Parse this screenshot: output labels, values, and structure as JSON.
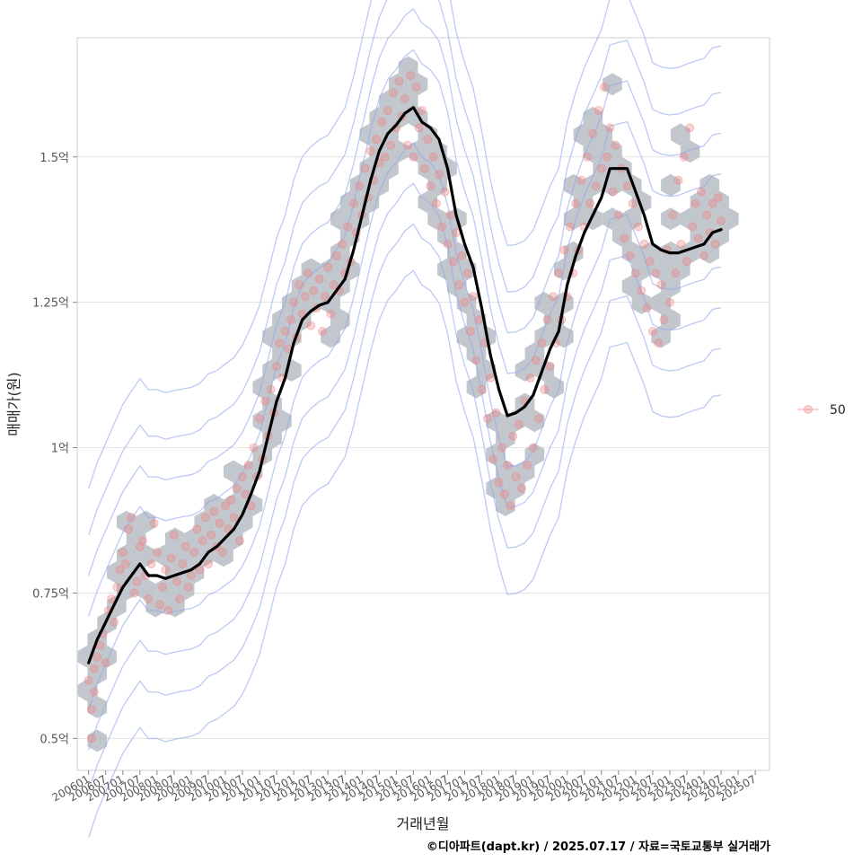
{
  "chart_data": {
    "type": "scatter",
    "xlabel": "거래년월",
    "ylabel": "매매가(원)",
    "x_tick_labels": [
      "200601",
      "200607",
      "200701",
      "200707",
      "200801",
      "200807",
      "200901",
      "200907",
      "201001",
      "201007",
      "201101",
      "201107",
      "201201",
      "201207",
      "201301",
      "201307",
      "201401",
      "201407",
      "201501",
      "201507",
      "201601",
      "201607",
      "201701",
      "201707",
      "201801",
      "201807",
      "201901",
      "201907",
      "202001",
      "202007",
      "202101",
      "202107",
      "202201",
      "202207",
      "202301",
      "202307",
      "202401",
      "202407",
      "202501",
      "202507"
    ],
    "y_ticks": [
      {
        "value": 0.5,
        "label": "0.5억"
      },
      {
        "value": 0.75,
        "label": "0.75억"
      },
      {
        "value": 1.0,
        "label": "1억"
      },
      {
        "value": 1.25,
        "label": "1.25억"
      },
      {
        "value": 1.5,
        "label": "1.5억"
      }
    ],
    "xlim_months": [
      -4,
      239
    ],
    "ylim": [
      0.445,
      1.705
    ],
    "grid": true,
    "legend": {
      "position": "right",
      "label": "50"
    },
    "caption": "©디아파트(dapt.kr) / 2025.07.17 / 자료=국토교통부 실거래가",
    "colors": {
      "points": "#f08080",
      "hexbin": "#b7bdc4",
      "density": "#8fa6ec",
      "trend": "#000000"
    },
    "trend_line": [
      [
        0,
        0.63
      ],
      [
        3,
        0.67
      ],
      [
        6,
        0.7
      ],
      [
        9,
        0.73
      ],
      [
        12,
        0.76
      ],
      [
        15,
        0.78
      ],
      [
        18,
        0.8
      ],
      [
        21,
        0.78
      ],
      [
        24,
        0.78
      ],
      [
        27,
        0.775
      ],
      [
        30,
        0.78
      ],
      [
        33,
        0.785
      ],
      [
        36,
        0.79
      ],
      [
        39,
        0.8
      ],
      [
        42,
        0.82
      ],
      [
        45,
        0.83
      ],
      [
        48,
        0.845
      ],
      [
        51,
        0.86
      ],
      [
        54,
        0.885
      ],
      [
        57,
        0.92
      ],
      [
        60,
        0.96
      ],
      [
        63,
        1.02
      ],
      [
        66,
        1.08
      ],
      [
        69,
        1.12
      ],
      [
        72,
        1.18
      ],
      [
        75,
        1.22
      ],
      [
        78,
        1.235
      ],
      [
        81,
        1.245
      ],
      [
        84,
        1.25
      ],
      [
        87,
        1.27
      ],
      [
        90,
        1.29
      ],
      [
        93,
        1.34
      ],
      [
        96,
        1.4
      ],
      [
        99,
        1.46
      ],
      [
        102,
        1.51
      ],
      [
        105,
        1.54
      ],
      [
        108,
        1.555
      ],
      [
        111,
        1.575
      ],
      [
        114,
        1.585
      ],
      [
        117,
        1.56
      ],
      [
        120,
        1.55
      ],
      [
        123,
        1.53
      ],
      [
        126,
        1.48
      ],
      [
        129,
        1.4
      ],
      [
        132,
        1.35
      ],
      [
        135,
        1.31
      ],
      [
        138,
        1.24
      ],
      [
        141,
        1.16
      ],
      [
        144,
        1.1
      ],
      [
        147,
        1.055
      ],
      [
        150,
        1.06
      ],
      [
        153,
        1.07
      ],
      [
        156,
        1.09
      ],
      [
        159,
        1.13
      ],
      [
        162,
        1.17
      ],
      [
        165,
        1.2
      ],
      [
        168,
        1.28
      ],
      [
        171,
        1.33
      ],
      [
        174,
        1.37
      ],
      [
        177,
        1.4
      ],
      [
        180,
        1.43
      ],
      [
        183,
        1.48
      ],
      [
        186,
        1.48
      ],
      [
        189,
        1.48
      ],
      [
        192,
        1.44
      ],
      [
        195,
        1.4
      ],
      [
        198,
        1.35
      ],
      [
        201,
        1.34
      ],
      [
        204,
        1.335
      ],
      [
        207,
        1.335
      ],
      [
        210,
        1.34
      ],
      [
        213,
        1.345
      ],
      [
        216,
        1.35
      ],
      [
        219,
        1.37
      ],
      [
        222,
        1.375
      ]
    ],
    "points": [
      [
        0,
        0.6
      ],
      [
        1,
        0.55
      ],
      [
        2,
        0.62
      ],
      [
        3,
        0.64
      ],
      [
        1,
        0.5
      ],
      [
        2,
        0.58
      ],
      [
        4,
        0.66
      ],
      [
        5,
        0.68
      ],
      [
        6,
        0.63
      ],
      [
        7,
        0.72
      ],
      [
        8,
        0.74
      ],
      [
        9,
        0.7
      ],
      [
        10,
        0.76
      ],
      [
        11,
        0.79
      ],
      [
        12,
        0.82
      ],
      [
        13,
        0.8
      ],
      [
        14,
        0.86
      ],
      [
        15,
        0.88
      ],
      [
        16,
        0.75
      ],
      [
        17,
        0.77
      ],
      [
        18,
        0.83
      ],
      [
        19,
        0.84
      ],
      [
        20,
        0.78
      ],
      [
        21,
        0.74
      ],
      [
        22,
        0.8
      ],
      [
        23,
        0.87
      ],
      [
        24,
        0.82
      ],
      [
        25,
        0.73
      ],
      [
        26,
        0.76
      ],
      [
        27,
        0.79
      ],
      [
        28,
        0.72
      ],
      [
        29,
        0.81
      ],
      [
        30,
        0.85
      ],
      [
        31,
        0.77
      ],
      [
        32,
        0.74
      ],
      [
        33,
        0.8
      ],
      [
        34,
        0.83
      ],
      [
        35,
        0.76
      ],
      [
        36,
        0.78
      ],
      [
        37,
        0.82
      ],
      [
        38,
        0.86
      ],
      [
        39,
        0.79
      ],
      [
        40,
        0.84
      ],
      [
        41,
        0.88
      ],
      [
        42,
        0.8
      ],
      [
        43,
        0.85
      ],
      [
        44,
        0.89
      ],
      [
        45,
        0.83
      ],
      [
        46,
        0.87
      ],
      [
        47,
        0.82
      ],
      [
        48,
        0.9
      ],
      [
        49,
        0.86
      ],
      [
        50,
        0.91
      ],
      [
        51,
        0.88
      ],
      [
        52,
        0.93
      ],
      [
        53,
        0.84
      ],
      [
        54,
        0.95
      ],
      [
        55,
        0.92
      ],
      [
        56,
        0.97
      ],
      [
        57,
        0.9
      ],
      [
        58,
        1.0
      ],
      [
        59,
        0.95
      ],
      [
        60,
        1.05
      ],
      [
        61,
        0.98
      ],
      [
        62,
        1.08
      ],
      [
        63,
        1.02
      ],
      [
        64,
        1.1
      ],
      [
        65,
        1.06
      ],
      [
        66,
        1.14
      ],
      [
        67,
        1.18
      ],
      [
        68,
        1.12
      ],
      [
        69,
        1.2
      ],
      [
        70,
        1.17
      ],
      [
        71,
        1.22
      ],
      [
        72,
        1.25
      ],
      [
        73,
        1.19
      ],
      [
        74,
        1.28
      ],
      [
        75,
        1.23
      ],
      [
        76,
        1.26
      ],
      [
        77,
        1.3
      ],
      [
        78,
        1.21
      ],
      [
        79,
        1.27
      ],
      [
        80,
        1.24
      ],
      [
        81,
        1.29
      ],
      [
        82,
        1.2
      ],
      [
        83,
        1.26
      ],
      [
        84,
        1.31
      ],
      [
        85,
        1.23
      ],
      [
        86,
        1.28
      ],
      [
        87,
        1.33
      ],
      [
        88,
        1.27
      ],
      [
        89,
        1.35
      ],
      [
        90,
        1.3
      ],
      [
        91,
        1.38
      ],
      [
        92,
        1.32
      ],
      [
        93,
        1.42
      ],
      [
        94,
        1.37
      ],
      [
        95,
        1.45
      ],
      [
        96,
        1.4
      ],
      [
        97,
        1.48
      ],
      [
        98,
        1.43
      ],
      [
        99,
        1.51
      ],
      [
        100,
        1.46
      ],
      [
        101,
        1.53
      ],
      [
        102,
        1.49
      ],
      [
        103,
        1.56
      ],
      [
        104,
        1.5
      ],
      [
        105,
        1.58
      ],
      [
        106,
        1.52
      ],
      [
        107,
        1.61
      ],
      [
        108,
        1.55
      ],
      [
        109,
        1.63
      ],
      [
        110,
        1.57
      ],
      [
        111,
        1.6
      ],
      [
        112,
        1.52
      ],
      [
        113,
        1.64
      ],
      [
        114,
        1.5
      ],
      [
        115,
        1.62
      ],
      [
        116,
        1.55
      ],
      [
        117,
        1.58
      ],
      [
        118,
        1.48
      ],
      [
        119,
        1.53
      ],
      [
        120,
        1.45
      ],
      [
        121,
        1.5
      ],
      [
        122,
        1.42
      ],
      [
        123,
        1.47
      ],
      [
        124,
        1.38
      ],
      [
        125,
        1.44
      ],
      [
        126,
        1.35
      ],
      [
        127,
        1.4
      ],
      [
        128,
        1.32
      ],
      [
        129,
        1.37
      ],
      [
        130,
        1.28
      ],
      [
        131,
        1.33
      ],
      [
        132,
        1.25
      ],
      [
        133,
        1.3
      ],
      [
        134,
        1.2
      ],
      [
        135,
        1.26
      ],
      [
        136,
        1.15
      ],
      [
        137,
        1.22
      ],
      [
        138,
        1.1
      ],
      [
        139,
        1.18
      ],
      [
        140,
        1.05
      ],
      [
        141,
        1.12
      ],
      [
        142,
        0.98
      ],
      [
        143,
        1.06
      ],
      [
        144,
        0.94
      ],
      [
        145,
        1.0
      ],
      [
        146,
        0.92
      ],
      [
        147,
        0.97
      ],
      [
        148,
        0.9
      ],
      [
        149,
        1.02
      ],
      [
        150,
        0.95
      ],
      [
        151,
        1.04
      ],
      [
        152,
        0.93
      ],
      [
        153,
        1.08
      ],
      [
        154,
        0.97
      ],
      [
        155,
        1.12
      ],
      [
        156,
        1.0
      ],
      [
        157,
        1.15
      ],
      [
        158,
        1.05
      ],
      [
        159,
        1.18
      ],
      [
        160,
        1.1
      ],
      [
        161,
        1.22
      ],
      [
        162,
        1.14
      ],
      [
        163,
        1.26
      ],
      [
        164,
        1.18
      ],
      [
        165,
        1.3
      ],
      [
        166,
        1.22
      ],
      [
        167,
        1.34
      ],
      [
        168,
        1.26
      ],
      [
        169,
        1.38
      ],
      [
        170,
        1.3
      ],
      [
        171,
        1.42
      ],
      [
        172,
        1.34
      ],
      [
        173,
        1.46
      ],
      [
        174,
        1.38
      ],
      [
        175,
        1.5
      ],
      [
        176,
        1.42
      ],
      [
        177,
        1.54
      ],
      [
        178,
        1.45
      ],
      [
        179,
        1.58
      ],
      [
        180,
        1.48
      ],
      [
        181,
        1.62
      ],
      [
        182,
        1.5
      ],
      [
        183,
        1.55
      ],
      [
        184,
        1.44
      ],
      [
        185,
        1.52
      ],
      [
        186,
        1.4
      ],
      [
        187,
        1.48
      ],
      [
        188,
        1.36
      ],
      [
        189,
        1.45
      ],
      [
        190,
        1.33
      ],
      [
        191,
        1.42
      ],
      [
        192,
        1.3
      ],
      [
        193,
        1.38
      ],
      [
        194,
        1.27
      ],
      [
        195,
        1.35
      ],
      [
        196,
        1.24
      ],
      [
        197,
        1.32
      ],
      [
        198,
        1.2
      ],
      [
        199,
        1.3
      ],
      [
        200,
        1.18
      ],
      [
        201,
        1.28
      ],
      [
        202,
        1.22
      ],
      [
        203,
        1.34
      ],
      [
        204,
        1.25
      ],
      [
        205,
        1.4
      ],
      [
        206,
        1.3
      ],
      [
        207,
        1.46
      ],
      [
        208,
        1.35
      ],
      [
        209,
        1.5
      ],
      [
        210,
        1.32
      ],
      [
        211,
        1.55
      ],
      [
        212,
        1.38
      ],
      [
        213,
        1.42
      ],
      [
        214,
        1.36
      ],
      [
        215,
        1.44
      ],
      [
        216,
        1.33
      ],
      [
        217,
        1.4
      ],
      [
        218,
        1.37
      ],
      [
        219,
        1.42
      ],
      [
        220,
        1.35
      ],
      [
        221,
        1.43
      ],
      [
        222,
        1.39
      ]
    ]
  }
}
